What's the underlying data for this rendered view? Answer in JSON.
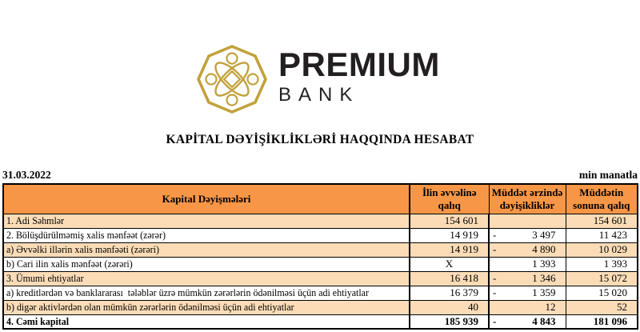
{
  "logo": {
    "brand": "PREMIUM",
    "sub": "BANK",
    "gold_color": "#C2A23C",
    "text_color": "#231F20"
  },
  "title": "KAPİTAL DƏYİŞİKLİKLƏRİ HAQQINDA HESABAT",
  "meta": {
    "date": "31.03.2022",
    "unit": "min manatla"
  },
  "table": {
    "colors": {
      "header_bg": "#F79646",
      "band_bg": "#FBDCB7",
      "plain_bg": "#FFFFFF",
      "border": "#000000"
    },
    "header": {
      "col0": "Kapital Dəyişmələri",
      "col1": "İlin əvvəlinə qalıq",
      "col2": "Müddət ərzində dəyişikliklər",
      "col3": "Müddətin sonuna qalıq"
    },
    "rows": [
      {
        "label": "1. Adi Səhmlər",
        "start": "154 601",
        "start_center": false,
        "change": "",
        "change_neg": false,
        "end": "154 601",
        "band": true,
        "bold": false
      },
      {
        "label": "2. Bölüşdürülməmiş xalis mənfəət (zərər)",
        "start": "14 919",
        "start_center": false,
        "change": "3 497",
        "change_neg": true,
        "end": "11 423",
        "band": false,
        "bold": false
      },
      {
        "label": "a) Əvvəlki illərin xalis mənfəəti (zərəri)",
        "start": "14 919",
        "start_center": false,
        "change": "4 890",
        "change_neg": true,
        "end": "10 029",
        "band": true,
        "bold": false
      },
      {
        "label": "b) Cari ilin xalis mənfəət (zərəri)",
        "start": "X",
        "start_center": true,
        "change": "1 393",
        "change_neg": false,
        "end": "1 393",
        "band": false,
        "bold": false
      },
      {
        "label": "3. Ümumi ehtiyatlar",
        "start": "16 418",
        "start_center": false,
        "change": "1 346",
        "change_neg": true,
        "end": "15 072",
        "band": true,
        "bold": false
      },
      {
        "label": "a) kreditlərdən və banklararası  tələblər üzrə mümkün zərərlərin ödənilməsi üçün adi ehtiyatlar",
        "start": "16 379",
        "start_center": false,
        "change": "1 359",
        "change_neg": true,
        "end": "15 020",
        "band": false,
        "bold": false
      },
      {
        "label": "b) digər aktivlərdən olan mümkün zərərlərin ödənilməsi üçün adi ehtiyatlar",
        "start": "40",
        "start_center": false,
        "change": "12",
        "change_neg": false,
        "end": "52",
        "band": true,
        "bold": false
      },
      {
        "label": "4. Cəmi kapital",
        "start": "185 939",
        "start_center": false,
        "change": "4 843",
        "change_neg": true,
        "end": "181 096",
        "band": false,
        "bold": true
      }
    ]
  }
}
